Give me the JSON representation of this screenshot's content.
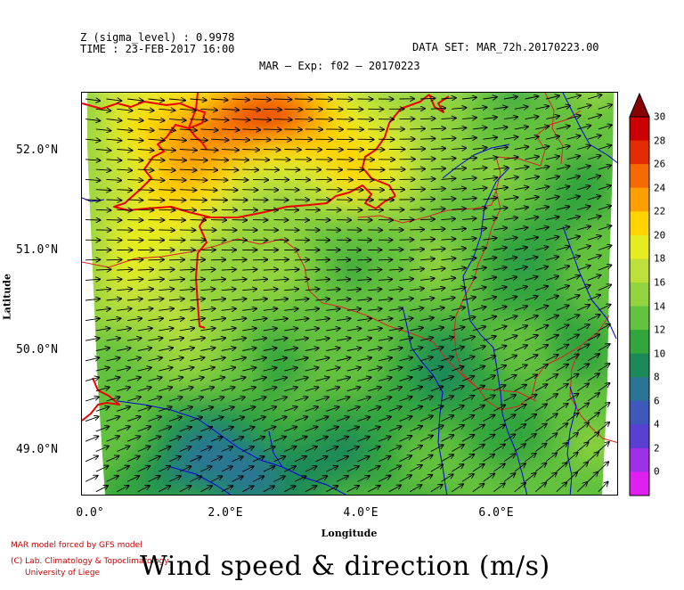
{
  "header": {
    "z_label": "Z (sigma_level) : 0.9978",
    "time_label": "TIME : 23-FEB-2017 16:00",
    "dataset_label": "DATA SET: MAR_72h.20170223.00",
    "title": "MAR – Exp: f02 – 20170223"
  },
  "map": {
    "lat_ticks": [
      "52.0°N",
      "51.0°N",
      "50.0°N",
      "49.0°N"
    ],
    "lon_ticks": [
      "0.0°",
      "2.0°E",
      "4.0°E",
      "6.0°E"
    ],
    "x_axis_label": "Longitude",
    "y_axis_label": "Latitude",
    "lon_range": [
      -0.15,
      7.7
    ],
    "lat_range": [
      48.55,
      52.55
    ],
    "field": "wind speed (m/s)",
    "vectors": "wind direction arrows, predominantly westerly to south-westerly",
    "coastline_color": "#ee0000",
    "border_color": "#dd2222",
    "river_color": "#0000dd"
  },
  "colorbar": {
    "labels": [
      "30",
      "28",
      "26",
      "24",
      "22",
      "20",
      "18",
      "16",
      "14",
      "12",
      "10",
      "8",
      "6",
      "4",
      "2",
      "0"
    ],
    "colors": [
      "#cc0000",
      "#e32c00",
      "#f46a00",
      "#fba000",
      "#ffd400",
      "#e6ec1e",
      "#bde03a",
      "#93d43e",
      "#63c23e",
      "#32a63c",
      "#1c8a58",
      "#2a7496",
      "#3f58bb",
      "#5a3fd3",
      "#a030e8",
      "#e020f0"
    ],
    "over_color": "#880000"
  },
  "credits": {
    "line1": "MAR model forced by GFS model",
    "line2": "(C) Lab. Climatology & Topoclimatology",
    "line3": "University of Liege"
  },
  "bottom_title": "Wind speed & direction (m/s)"
}
